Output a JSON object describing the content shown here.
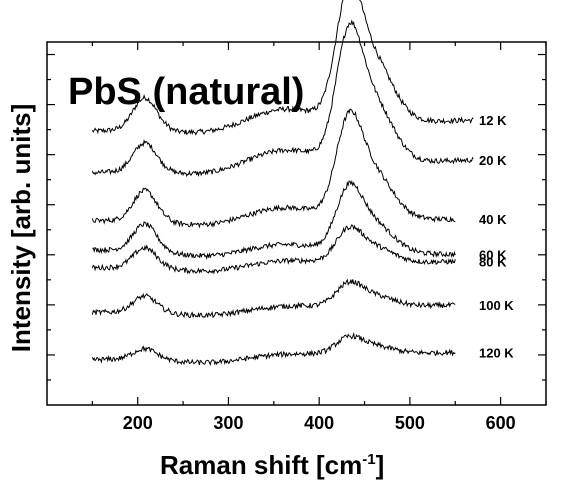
{
  "chart_data": {
    "type": "line",
    "title": "PbS (natural)",
    "xlabel": "Raman shift [cm",
    "xlabel_sup": "-1",
    "xlabel_end": "]",
    "ylabel": "Intensity [arb. units]",
    "xlim": [
      100,
      650
    ],
    "ylim": [
      0,
      1
    ],
    "xticks": [
      200,
      300,
      400,
      500,
      600
    ],
    "grid": false,
    "legend": "none",
    "line_color": "#000000",
    "series": [
      {
        "name": "12 K",
        "x_end": 570,
        "baseline": 0.755,
        "peak1": 0.09,
        "peak2": 0.39,
        "end": 0.785
      },
      {
        "name": "20 K",
        "x_end": 570,
        "baseline": 0.64,
        "peak1": 0.08,
        "peak2": 0.385,
        "end": 0.675
      },
      {
        "name": "40 K",
        "x_end": 550,
        "baseline": 0.508,
        "peak1": 0.085,
        "peak2": 0.295,
        "end": 0.512
      },
      {
        "name": "60 K",
        "x_end": 550,
        "baseline": 0.428,
        "peak1": 0.075,
        "peak2": 0.19,
        "end": 0.415
      },
      {
        "name": "80 K",
        "x_end": 550,
        "baseline": 0.378,
        "peak1": 0.055,
        "peak2": 0.1,
        "end": 0.395
      },
      {
        "name": "100 K",
        "x_end": 550,
        "baseline": 0.255,
        "peak1": 0.045,
        "peak2": 0.07,
        "end": 0.275
      },
      {
        "name": "120 K",
        "x_end": 550,
        "baseline": 0.125,
        "peak1": 0.03,
        "peak2": 0.05,
        "end": 0.145
      }
    ]
  }
}
